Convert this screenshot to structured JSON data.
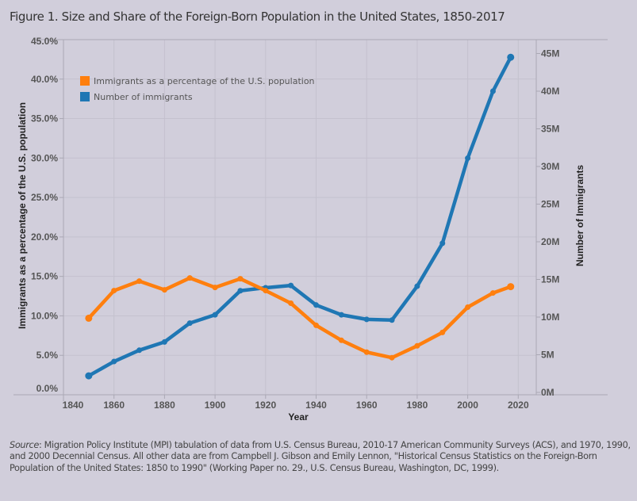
{
  "figure_title": "Figure 1. Size and Share of the Foreign-Born Population in the United States, 1850-2017",
  "source": {
    "label": "Source",
    "text": ": Migration Policy Institute (MPI) tabulation of data from U.S. Census Bureau, 2010-17 American Community Surveys (ACS), and 1970, 1990, and 2000 Decennial Census. All other data are from Campbell J. Gibson and Emily Lennon, \"Historical Census Statistics on the Foreign-Born Population of the United States: 1850 to 1990\" (Working Paper no. 29., U.S. Census Bureau, Washington, DC, 1999)."
  },
  "colors": {
    "percent": "#ff7f0e",
    "number": "#1f77b4",
    "background": "#d1cedb",
    "grid": "#c4c1ce"
  },
  "chart_data": {
    "type": "line",
    "title": "Figure 1. Size and Share of the Foreign-Born Population in the United States, 1850-2017",
    "xlabel": "Year",
    "ylabel_left": "Immigrants as a percentage of the U.S. population",
    "ylabel_right": "Number of Immigrants",
    "xlim": [
      1840,
      2028
    ],
    "ylim_left": [
      0,
      45
    ],
    "ylim_right": [
      0,
      47
    ],
    "grid": true,
    "legend_position": "top-left",
    "x_ticks": [
      "1840",
      "1860",
      "1880",
      "1900",
      "1920",
      "1940",
      "1960",
      "1980",
      "2000",
      "2020"
    ],
    "x_tick_values": [
      1840,
      1860,
      1880,
      1900,
      1920,
      1940,
      1960,
      1980,
      2000,
      2020
    ],
    "y_left_ticks": [
      "0.0%",
      "5.0%",
      "10.0%",
      "15.0%",
      "20.0%",
      "25.0%",
      "30.0%",
      "35.0%",
      "40.0%",
      "45.0%"
    ],
    "y_left_tick_values": [
      0,
      5,
      10,
      15,
      20,
      25,
      30,
      35,
      40,
      45
    ],
    "y_right_ticks": [
      "0M",
      "5M",
      "10M",
      "15M",
      "20M",
      "25M",
      "30M",
      "35M",
      "40M",
      "45M"
    ],
    "y_right_tick_values": [
      0,
      5,
      10,
      15,
      20,
      25,
      30,
      35,
      40,
      45
    ],
    "x": [
      1850,
      1860,
      1870,
      1880,
      1890,
      1900,
      1910,
      1920,
      1930,
      1940,
      1950,
      1960,
      1970,
      1980,
      1990,
      2000,
      2010,
      2017
    ],
    "series": [
      {
        "name": "Immigrants as a percentage of the U.S. population",
        "axis": "left",
        "unit": "%",
        "values": [
          9.7,
          13.2,
          14.4,
          13.3,
          14.8,
          13.6,
          14.7,
          13.2,
          11.6,
          8.8,
          6.9,
          5.4,
          4.7,
          6.2,
          7.9,
          11.1,
          12.9,
          13.7
        ]
      },
      {
        "name": "Number of immigrants",
        "axis": "right",
        "unit": "millions",
        "values": [
          2.2,
          4.1,
          5.6,
          6.7,
          9.2,
          10.3,
          13.5,
          13.9,
          14.2,
          11.6,
          10.3,
          9.7,
          9.6,
          14.1,
          19.8,
          31.1,
          40.0,
          44.5
        ]
      }
    ]
  }
}
